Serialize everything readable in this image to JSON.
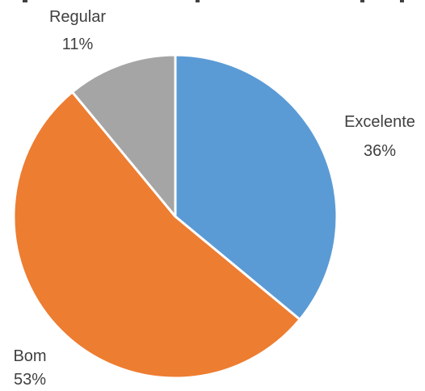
{
  "chart_data": {
    "type": "pie",
    "title": "",
    "start_angle_deg": 0,
    "direction": "clockwise",
    "legend": "none",
    "slices": [
      {
        "label": "Excelente",
        "value": 36,
        "display": "36%",
        "color": "#5B9BD5"
      },
      {
        "label": "Bom",
        "value": 53,
        "display": "53%",
        "color": "#ED7D31"
      },
      {
        "label": "Regular",
        "value": 11,
        "display": "11%",
        "color": "#A5A5A5"
      }
    ]
  }
}
